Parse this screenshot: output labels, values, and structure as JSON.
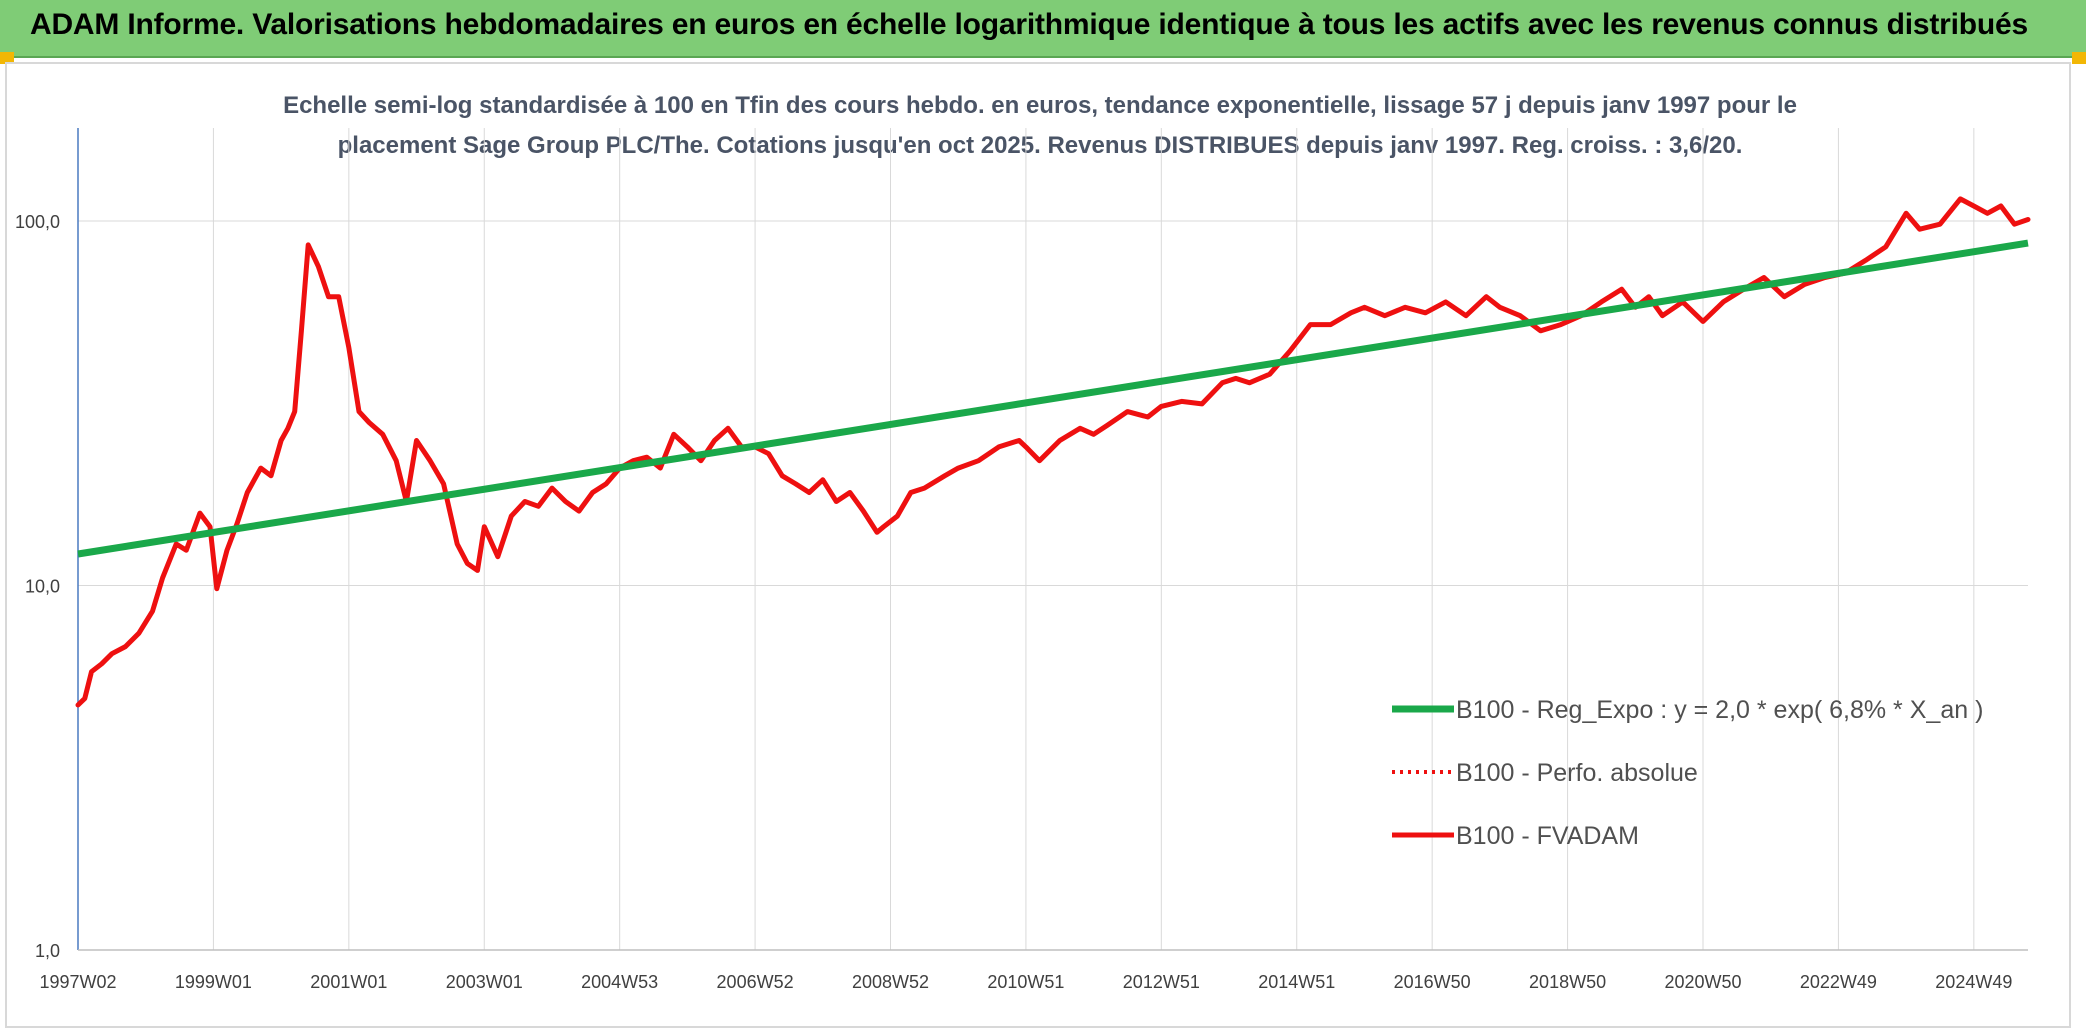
{
  "header": {
    "title": "ADAM Informe. Valorisations hebdomadaires en euros en échelle logarithmique identique à tous les actifs avec les revenus connus distribués"
  },
  "colors": {
    "header_bg": "#7fcc76",
    "corner_accent": "#f2b705",
    "series_regression": "#1aa84a",
    "series_fvadam": "#ee1010",
    "series_perfo": "#ee1010",
    "grid": "#d9d9d9",
    "y_axis": "#4a7ac0"
  },
  "chart_data": {
    "type": "line",
    "title": "",
    "subtitle_lines": [
      "Echelle semi-log standardisée à 100 en Tfin des cours hebdo. en euros, tendance exponentielle, lissage 57 j depuis janv 1997 pour le",
      "placement Sage Group PLC/The. Cotations jusqu'en oct 2025. Revenus DISTRIBUES depuis janv 1997. Reg. croiss. : 3,6/20."
    ],
    "xlabel": "",
    "ylabel": "",
    "y_scale": "log",
    "ylim": [
      1,
      180
    ],
    "xlim": [
      1997.0,
      2025.8
    ],
    "y_ticks": [
      1,
      10,
      100
    ],
    "y_tick_labels": [
      "1,0",
      "10,0",
      "100,0"
    ],
    "x_ticks": [
      1997.0,
      1999.0,
      2001.0,
      2003.0,
      2005.0,
      2007.0,
      2009.0,
      2011.0,
      2013.0,
      2015.0,
      2017.0,
      2019.0,
      2021.0,
      2023.0,
      2025.0
    ],
    "x_tick_labels": [
      "1997W02",
      "1999W01",
      "2001W01",
      "2003W01",
      "2004W53",
      "2006W52",
      "2008W52",
      "2010W51",
      "2012W51",
      "2014W51",
      "2016W50",
      "2018W50",
      "2020W50",
      "2022W49",
      "2024W49"
    ],
    "grid": true,
    "legend_position": "bottom-right",
    "series": [
      {
        "name": "B100 - Reg_Expo : y = 2,0 * exp( 6,8% *  X_an )",
        "style": "solid",
        "x": [
          1997.0,
          2025.8
        ],
        "y": [
          12.2,
          87
        ]
      },
      {
        "name": "B100 - Perfo. absolue",
        "style": "dotted",
        "x": [],
        "y": []
      },
      {
        "name": "B100 - FVADAM",
        "style": "solid",
        "x": [
          1997.0,
          1997.1,
          1997.2,
          1997.35,
          1997.5,
          1997.7,
          1997.9,
          1998.1,
          1998.25,
          1998.45,
          1998.6,
          1998.8,
          1998.95,
          1999.05,
          1999.2,
          1999.35,
          1999.5,
          1999.7,
          1999.85,
          2000.0,
          2000.1,
          2000.2,
          2000.3,
          2000.4,
          2000.55,
          2000.7,
          2000.85,
          2001.0,
          2001.15,
          2001.3,
          2001.5,
          2001.7,
          2001.85,
          2002.0,
          2002.2,
          2002.4,
          2002.6,
          2002.75,
          2002.9,
          2003.0,
          2003.2,
          2003.4,
          2003.6,
          2003.8,
          2004.0,
          2004.2,
          2004.4,
          2004.6,
          2004.8,
          2005.0,
          2005.2,
          2005.4,
          2005.6,
          2005.8,
          2006.0,
          2006.2,
          2006.4,
          2006.6,
          2006.8,
          2007.0,
          2007.2,
          2007.4,
          2007.6,
          2007.8,
          2008.0,
          2008.2,
          2008.4,
          2008.6,
          2008.8,
          2008.9,
          2009.1,
          2009.3,
          2009.5,
          2009.8,
          2010.0,
          2010.3,
          2010.6,
          2010.9,
          2011.0,
          2011.2,
          2011.5,
          2011.8,
          2012.0,
          2012.2,
          2012.5,
          2012.8,
          2013.0,
          2013.3,
          2013.6,
          2013.9,
          2014.1,
          2014.3,
          2014.6,
          2014.9,
          2015.2,
          2015.5,
          2015.8,
          2016.0,
          2016.3,
          2016.6,
          2016.9,
          2017.2,
          2017.5,
          2017.8,
          2018.0,
          2018.3,
          2018.6,
          2018.9,
          2019.2,
          2019.5,
          2019.8,
          2020.0,
          2020.2,
          2020.4,
          2020.7,
          2021.0,
          2021.3,
          2021.6,
          2021.9,
          2022.2,
          2022.5,
          2022.8,
          2023.1,
          2023.4,
          2023.7,
          2024.0,
          2024.2,
          2024.5,
          2024.8,
          2025.0,
          2025.2,
          2025.4,
          2025.6,
          2025.8
        ],
        "y": [
          4.7,
          4.9,
          5.8,
          6.1,
          6.5,
          6.8,
          7.4,
          8.5,
          10.5,
          13.0,
          12.5,
          15.8,
          14.5,
          9.8,
          12.5,
          14.8,
          18.0,
          21.0,
          20.0,
          25.0,
          27.0,
          30.0,
          50.0,
          86.0,
          75.0,
          62.0,
          62.0,
          45.0,
          30.0,
          28.0,
          26.0,
          22.0,
          17.0,
          25.0,
          22.0,
          19.0,
          13.0,
          11.5,
          11.0,
          14.5,
          12.0,
          15.5,
          17.0,
          16.5,
          18.5,
          17.0,
          16.0,
          18.0,
          19.0,
          21.0,
          22.0,
          22.5,
          21.0,
          26.0,
          24.0,
          22.0,
          25.0,
          27.0,
          24.0,
          24.0,
          23.0,
          20.0,
          19.0,
          18.0,
          19.5,
          17.0,
          18.0,
          16.0,
          14.0,
          14.5,
          15.5,
          18.0,
          18.5,
          20.0,
          21.0,
          22.0,
          24.0,
          25.0,
          24.0,
          22.0,
          25.0,
          27.0,
          26.0,
          27.5,
          30.0,
          29.0,
          31.0,
          32.0,
          31.5,
          36.0,
          37.0,
          36.0,
          38.0,
          44.0,
          52.0,
          52.0,
          56.0,
          58.0,
          55.0,
          58.0,
          56.0,
          60.0,
          55.0,
          62.0,
          58.0,
          55.0,
          50.0,
          52.0,
          55.0,
          60.0,
          65.0,
          58.0,
          62.0,
          55.0,
          60.0,
          53.0,
          60.0,
          65.0,
          70.0,
          62.0,
          67.0,
          70.0,
          72.0,
          78.0,
          85.0,
          105.0,
          95.0,
          98.0,
          115.0,
          110.0,
          105.0,
          110.0,
          98.0,
          101.0
        ]
      }
    ]
  }
}
